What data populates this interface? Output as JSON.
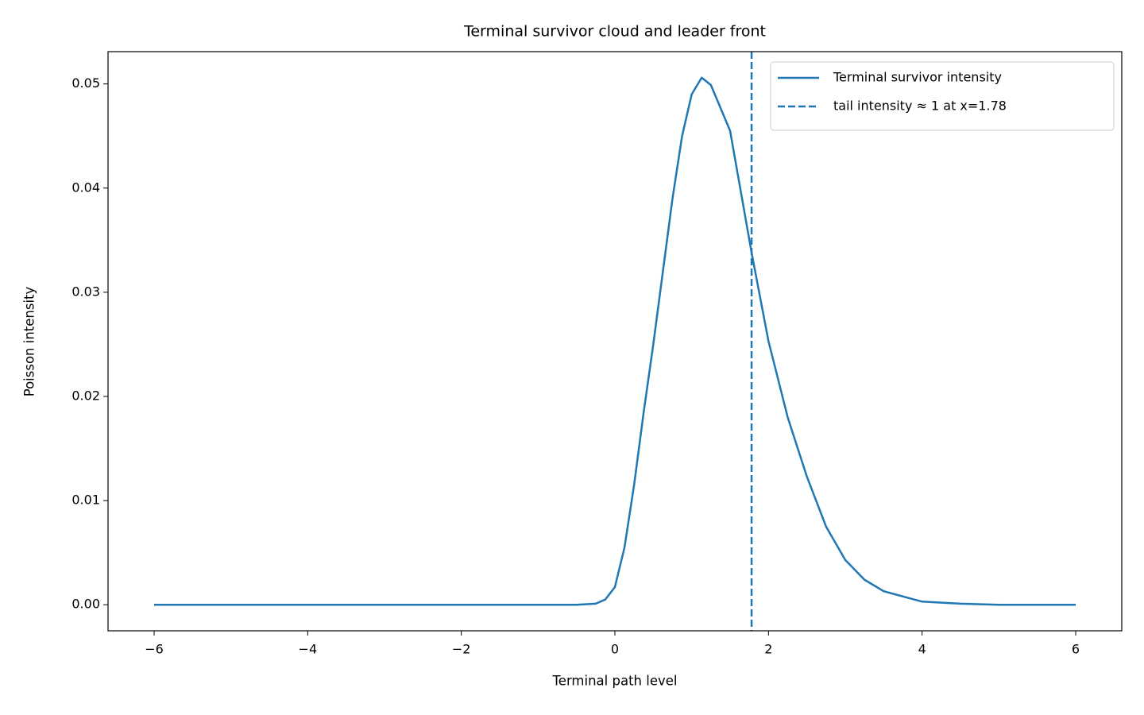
{
  "chart_data": {
    "type": "line",
    "title": "Terminal survivor cloud and leader front",
    "x_label": "Terminal path level",
    "y_label": "Poisson intensity",
    "x": [
      -6,
      -4,
      -2,
      -1,
      -0.5,
      -0.25,
      -0.125,
      0,
      0.125,
      0.25,
      0.375,
      0.5,
      0.625,
      0.75,
      0.875,
      1.0,
      1.13,
      1.25,
      1.5,
      1.78,
      2.0,
      2.25,
      2.5,
      2.75,
      3.0,
      3.25,
      3.5,
      4.0,
      4.5,
      5.0,
      6.0
    ],
    "series": [
      {
        "name": "Terminal survivor intensity",
        "color": "#1f77b4",
        "values": [
          0,
          0,
          0,
          0,
          0,
          0.0001,
          0.0005,
          0.0017,
          0.0055,
          0.0115,
          0.0185,
          0.025,
          0.032,
          0.039,
          0.045,
          0.049,
          0.0506,
          0.0499,
          0.0455,
          0.0338,
          0.0253,
          0.018,
          0.0123,
          0.0075,
          0.0043,
          0.0024,
          0.0013,
          0.0003,
          0.0001,
          0,
          0
        ]
      }
    ],
    "reference_line": {
      "name": "tail intensity ≈ 1 at x=1.78",
      "x": 1.78,
      "color": "#1f77b4",
      "style": "dashed"
    },
    "xlim": [
      -6.6,
      6.6
    ],
    "ylim": [
      -0.0025,
      0.0531
    ],
    "xticks": [
      {
        "value": -6,
        "label": "−6"
      },
      {
        "value": -4,
        "label": "−4"
      },
      {
        "value": -2,
        "label": "−2"
      },
      0,
      2,
      4,
      6
    ],
    "yticks": [
      {
        "value": 0,
        "label": "0.00"
      },
      {
        "value": 0.01,
        "label": "0.01"
      },
      {
        "value": 0.02,
        "label": "0.02"
      },
      {
        "value": 0.03,
        "label": "0.03"
      },
      {
        "value": 0.04,
        "label": "0.04"
      },
      {
        "value": 0.05,
        "label": "0.05"
      }
    ],
    "grid": false,
    "legend": "upper right"
  }
}
